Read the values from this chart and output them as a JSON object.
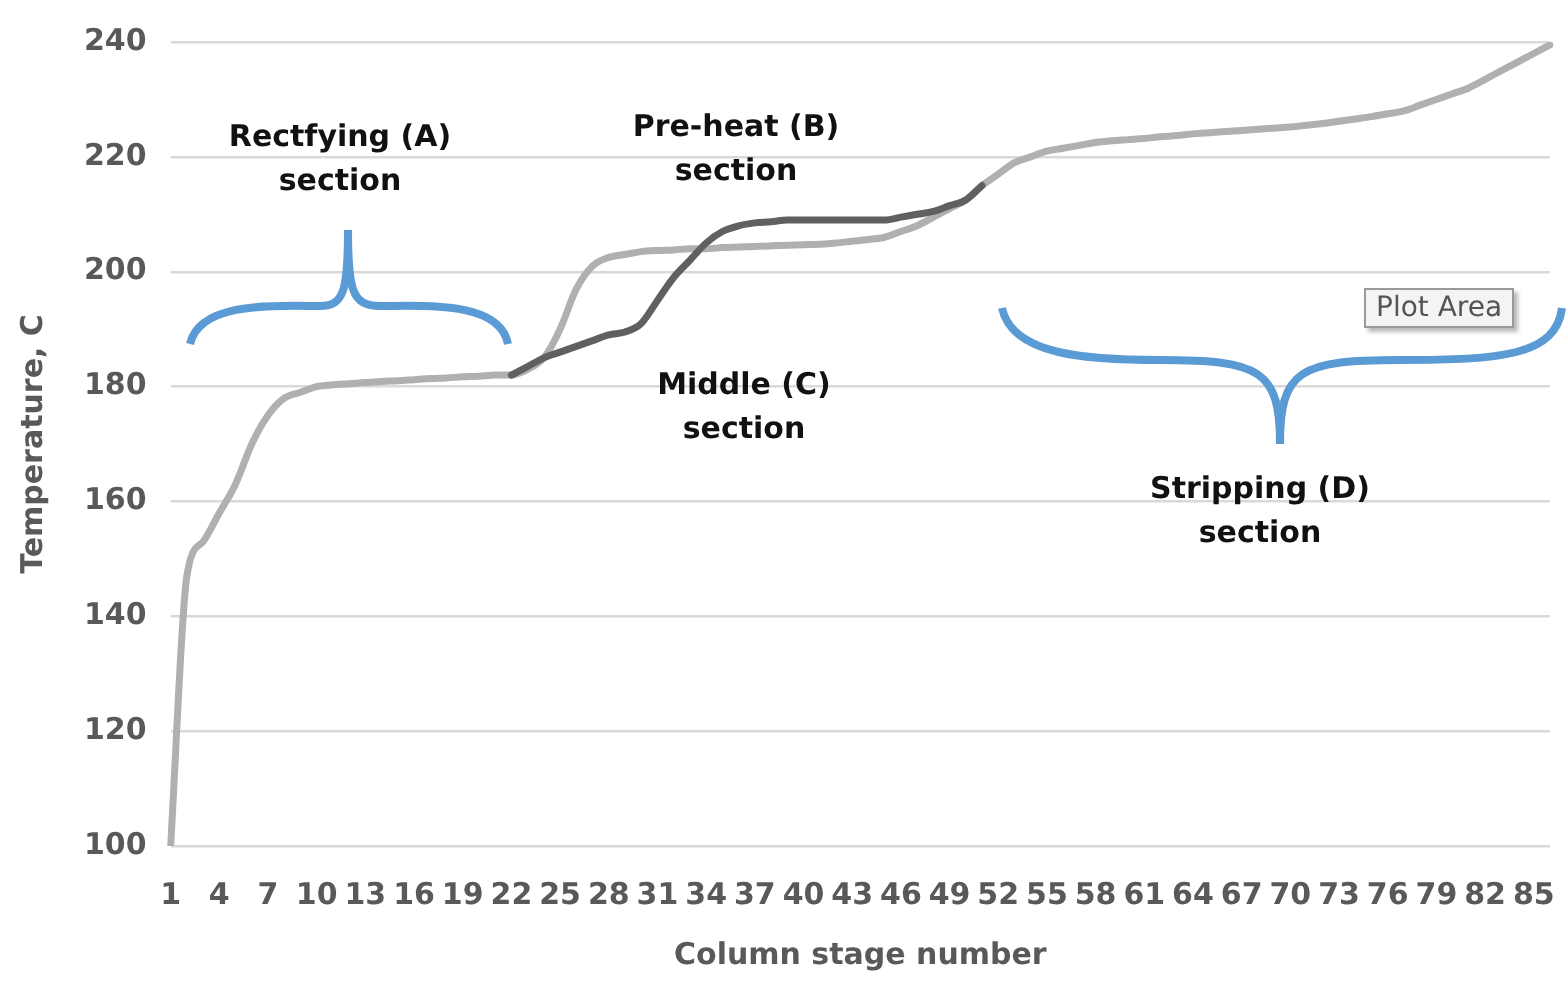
{
  "chart_data": {
    "type": "line",
    "xlabel": "Column stage number",
    "ylabel": "Temperature, C",
    "categories": [
      "1",
      null,
      null,
      "4",
      null,
      null,
      "7",
      null,
      null,
      "10",
      null,
      null,
      "13",
      null,
      null,
      "16",
      null,
      null,
      "19",
      null,
      null,
      "22",
      null,
      null,
      "25",
      null,
      null,
      "28",
      null,
      null,
      "31",
      null,
      null,
      "34",
      null,
      null,
      "37",
      null,
      null,
      "40",
      null,
      null,
      "43",
      null,
      null,
      "46",
      null,
      null,
      "49",
      null,
      null,
      "52",
      null,
      null,
      "55",
      null,
      null,
      "58",
      null,
      null,
      "61",
      null,
      null,
      "64",
      null,
      null,
      "67",
      null,
      null,
      "70",
      null,
      null,
      "73",
      null,
      null,
      "76",
      null,
      null,
      "79",
      null,
      null,
      "82",
      null,
      null,
      "85",
      null
    ],
    "series": [
      {
        "color": "#606060",
        "values": [
          null,
          null,
          null,
          null,
          null,
          null,
          null,
          null,
          null,
          null,
          null,
          null,
          null,
          null,
          null,
          null,
          null,
          null,
          null,
          null,
          null,
          182,
          183.5,
          185,
          186,
          187,
          188,
          189,
          189.5,
          191,
          195,
          199,
          202,
          205,
          207,
          208,
          208.5,
          208.7,
          209,
          209,
          209,
          209,
          209,
          209,
          209,
          209.5,
          210,
          210.5,
          211.5,
          212.5,
          215,
          null,
          null,
          null,
          null,
          null,
          null,
          null,
          null,
          null,
          null,
          null,
          null,
          null,
          null,
          null,
          null,
          null,
          null,
          null,
          null,
          null,
          null,
          null,
          null,
          null,
          null,
          null,
          null,
          null,
          null,
          null,
          null,
          null,
          null,
          null
        ]
      },
      {
        "color": "#b0b0b0",
        "values": [
          100,
          147,
          153,
          158,
          163,
          170,
          175,
          178,
          179,
          180,
          180.3,
          180.5,
          180.7,
          180.9,
          181,
          181.2,
          181.4,
          181.5,
          181.7,
          181.8,
          182,
          182,
          183,
          185,
          190,
          197,
          201,
          202.5,
          203,
          203.5,
          203.7,
          203.8,
          204,
          204,
          204.2,
          204.3,
          204.4,
          204.5,
          204.6,
          204.7,
          204.8,
          205,
          205.3,
          205.6,
          206,
          207,
          208,
          209.5,
          211,
          212.5,
          215,
          217,
          219,
          220,
          221,
          221.5,
          222,
          222.5,
          222.8,
          223,
          223.2,
          223.5,
          223.7,
          224,
          224.2,
          224.4,
          224.6,
          224.8,
          225,
          225.2,
          225.5,
          225.8,
          226.2,
          226.6,
          227,
          227.5,
          228,
          229,
          230,
          231,
          232,
          233.5,
          235,
          236.5,
          238,
          239.5
        ]
      }
    ],
    "ylim": [
      100,
      240
    ],
    "yticks": [
      100,
      120,
      140,
      160,
      180,
      200,
      220,
      240
    ],
    "grid": "y",
    "legend": false,
    "marker": "none",
    "line_style": "solid",
    "annotations": [
      "Rectfying (A)\nsection",
      "Pre-heat (B)\nsection",
      "Middle (C)\nsection",
      "Stripping (D)\nsection",
      "Plot Area"
    ]
  }
}
